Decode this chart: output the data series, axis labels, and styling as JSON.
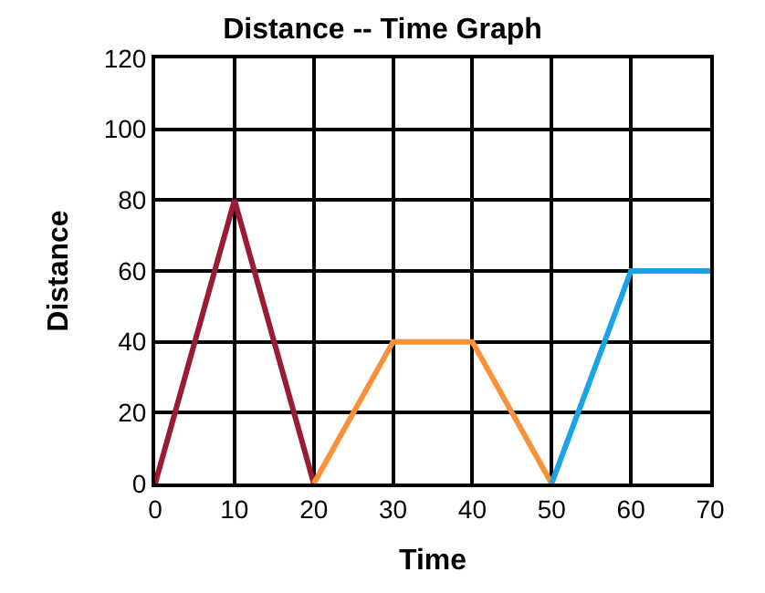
{
  "chart_data": {
    "type": "line",
    "title": "Distance -- Time Graph",
    "xlabel": "Time",
    "ylabel": "Distance",
    "series": [
      {
        "color": "#9b1b30",
        "x": [
          0,
          10,
          20
        ],
        "values": [
          0,
          80,
          0
        ]
      },
      {
        "color": "#f7913a",
        "x": [
          20,
          30,
          40,
          50
        ],
        "values": [
          0,
          40,
          40,
          0
        ]
      },
      {
        "color": "#1aa3e8",
        "x": [
          50,
          60,
          70
        ],
        "values": [
          0,
          60,
          60
        ]
      }
    ],
    "xlim": [
      0,
      70
    ],
    "xticks": [
      0,
      10,
      20,
      30,
      40,
      50,
      60,
      70
    ],
    "ylim": [
      0,
      120
    ],
    "yticks": [
      0,
      20,
      40,
      60,
      80,
      100,
      120
    ],
    "grid": true,
    "marker": "none",
    "line_style": "solid"
  }
}
